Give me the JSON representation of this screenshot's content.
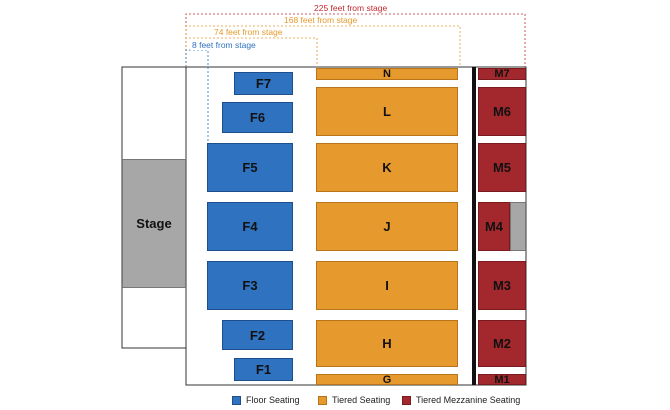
{
  "distances": [
    {
      "label": "225 feet from stage",
      "color": "#c0282e"
    },
    {
      "label": "168 feet from stage",
      "color": "#e69a2e"
    },
    {
      "label": "74 feet from stage",
      "color": "#e69a2e"
    },
    {
      "label": "8 feet from stage",
      "color": "#2f72bf"
    }
  ],
  "stage": {
    "label": "Stage"
  },
  "floor_sections": [
    "F7",
    "F6",
    "F5",
    "F4",
    "F3",
    "F2",
    "F1"
  ],
  "tiered_sections": [
    "N",
    "L",
    "K",
    "J",
    "I",
    "H",
    "G"
  ],
  "mezzanine_sections": [
    "M7",
    "M6",
    "M5",
    "M4",
    "M3",
    "M2",
    "M1"
  ],
  "legend": [
    {
      "label": "Floor Seating",
      "color": "#2f72bf"
    },
    {
      "label": "Tiered Seating",
      "color": "#e69a2e"
    },
    {
      "label": "Tiered Mezzanine Seating",
      "color": "#a3282e"
    }
  ]
}
